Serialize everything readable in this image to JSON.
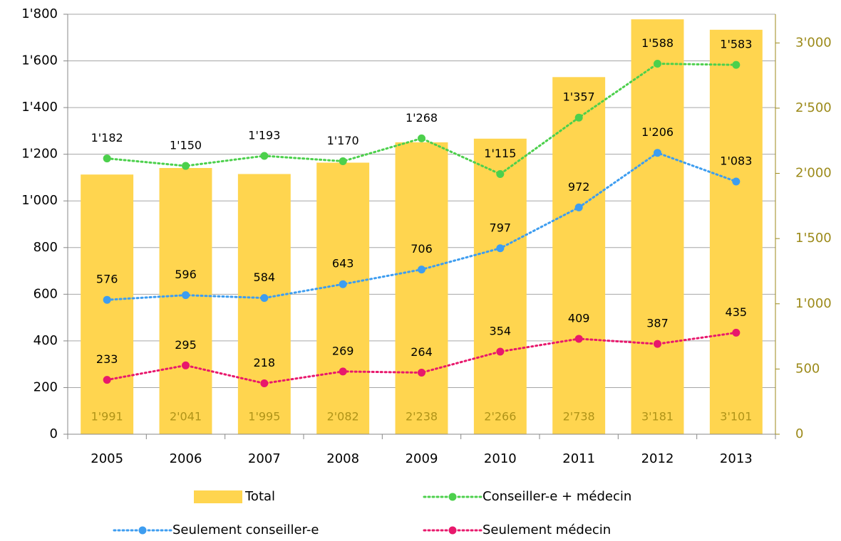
{
  "chart_data": {
    "type": "bar",
    "categories": [
      "2005",
      "2006",
      "2007",
      "2008",
      "2009",
      "2010",
      "2011",
      "2012",
      "2013"
    ],
    "series": [
      {
        "name": "Total",
        "type": "bar",
        "axis": "y2",
        "color": "#ffd54f",
        "values": [
          1991,
          2041,
          1995,
          2082,
          2238,
          2266,
          2738,
          3181,
          3101
        ],
        "value_labels": [
          "1'991",
          "2'041",
          "1'995",
          "2'082",
          "2'238",
          "2'266",
          "2'738",
          "3'181",
          "3'101"
        ]
      },
      {
        "name": "Conseiller-e + médecin",
        "type": "line",
        "color": "#4cd04c",
        "values": [
          1182,
          1150,
          1193,
          1170,
          1268,
          1115,
          1357,
          1588,
          1583
        ],
        "value_labels": [
          "1'182",
          "1'150",
          "1'193",
          "1'170",
          "1'268",
          "1'115",
          "1'357",
          "1'588",
          "1'583"
        ]
      },
      {
        "name": "Seulement conseiller-e",
        "type": "line",
        "color": "#3d9df0",
        "values": [
          576,
          596,
          584,
          643,
          706,
          797,
          972,
          1206,
          1083
        ],
        "value_labels": [
          "576",
          "596",
          "584",
          "643",
          "706",
          "797",
          "972",
          "1'206",
          "1'083"
        ]
      },
      {
        "name": "Seulement médecin",
        "type": "line",
        "color": "#e8186c",
        "values": [
          233,
          295,
          218,
          269,
          264,
          354,
          409,
          387,
          435
        ]
      }
    ],
    "ylim": [
      0,
      1800
    ],
    "yticks": [
      0,
      200,
      400,
      600,
      800,
      {
        "value": 1000,
        "label": "1'000"
      },
      {
        "value": 1200,
        "label": "1'200"
      },
      {
        "value": 1400,
        "label": "1'400"
      },
      {
        "value": 1600,
        "label": "1'600"
      },
      {
        "value": 1800,
        "label": "1'800"
      }
    ],
    "y2lim": [
      0,
      3220
    ],
    "y2ticks": [
      0,
      500,
      {
        "value": 1000,
        "label": "1'000"
      },
      {
        "value": 1500,
        "label": "1'500"
      },
      {
        "value": 2000,
        "label": "2'000"
      },
      {
        "value": 2500,
        "label": "2'500"
      },
      {
        "value": 3000,
        "label": "3'000"
      }
    ],
    "grid": true,
    "legend": "bottom"
  }
}
